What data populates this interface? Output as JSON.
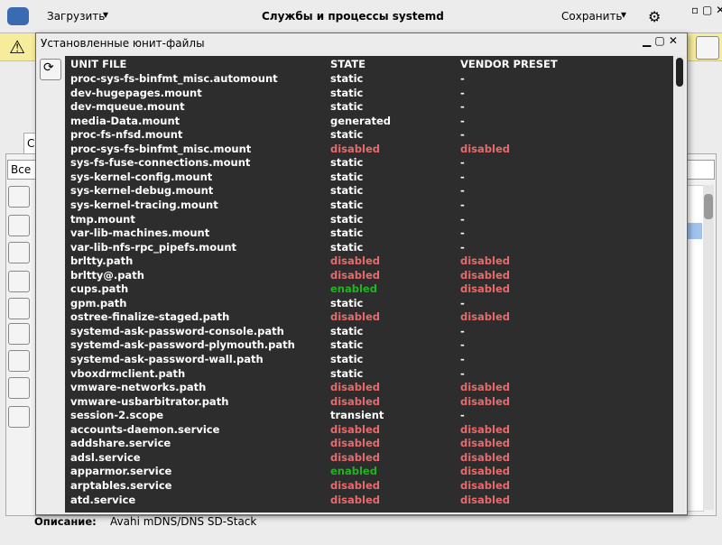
{
  "window": {
    "menu_load": "Загрузить",
    "title": "Службы и процессы systemd",
    "menu_save": "Сохранить"
  },
  "background": {
    "tab": "С",
    "filter": "Все",
    "description_label": "Описание:",
    "description_value": "Avahi mDNS/DNS SD-Stack"
  },
  "dialog": {
    "title": "Установленные юнит-файлы",
    "columns": [
      "UNIT FILE",
      "STATE",
      "VENDOR PRESET"
    ],
    "rows": [
      [
        "proc-sys-fs-binfmt_misc.automount",
        "static",
        "-"
      ],
      [
        "dev-hugepages.mount",
        "static",
        "-"
      ],
      [
        "dev-mqueue.mount",
        "static",
        "-"
      ],
      [
        "media-Data.mount",
        "generated",
        "-"
      ],
      [
        "proc-fs-nfsd.mount",
        "static",
        "-"
      ],
      [
        "proc-sys-fs-binfmt_misc.mount",
        "disabled",
        "disabled"
      ],
      [
        "sys-fs-fuse-connections.mount",
        "static",
        "-"
      ],
      [
        "sys-kernel-config.mount",
        "static",
        "-"
      ],
      [
        "sys-kernel-debug.mount",
        "static",
        "-"
      ],
      [
        "sys-kernel-tracing.mount",
        "static",
        "-"
      ],
      [
        "tmp.mount",
        "static",
        "-"
      ],
      [
        "var-lib-machines.mount",
        "static",
        "-"
      ],
      [
        "var-lib-nfs-rpc_pipefs.mount",
        "static",
        "-"
      ],
      [
        "brltty.path",
        "disabled",
        "disabled"
      ],
      [
        "brltty@.path",
        "disabled",
        "disabled"
      ],
      [
        "cups.path",
        "enabled",
        "disabled"
      ],
      [
        "gpm.path",
        "static",
        "-"
      ],
      [
        "ostree-finalize-staged.path",
        "disabled",
        "disabled"
      ],
      [
        "systemd-ask-password-console.path",
        "static",
        "-"
      ],
      [
        "systemd-ask-password-plymouth.path",
        "static",
        "-"
      ],
      [
        "systemd-ask-password-wall.path",
        "static",
        "-"
      ],
      [
        "vboxdrmclient.path",
        "static",
        "-"
      ],
      [
        "vmware-networks.path",
        "disabled",
        "disabled"
      ],
      [
        "vmware-usbarbitrator.path",
        "disabled",
        "disabled"
      ],
      [
        "session-2.scope",
        "transient",
        "-"
      ],
      [
        "accounts-daemon.service",
        "disabled",
        "disabled"
      ],
      [
        "addshare.service",
        "disabled",
        "disabled"
      ],
      [
        "adsl.service",
        "disabled",
        "disabled"
      ],
      [
        "apparmor.service",
        "enabled",
        "disabled"
      ],
      [
        "arptables.service",
        "disabled",
        "disabled"
      ],
      [
        "atd.service",
        "disabled",
        "disabled"
      ]
    ]
  }
}
